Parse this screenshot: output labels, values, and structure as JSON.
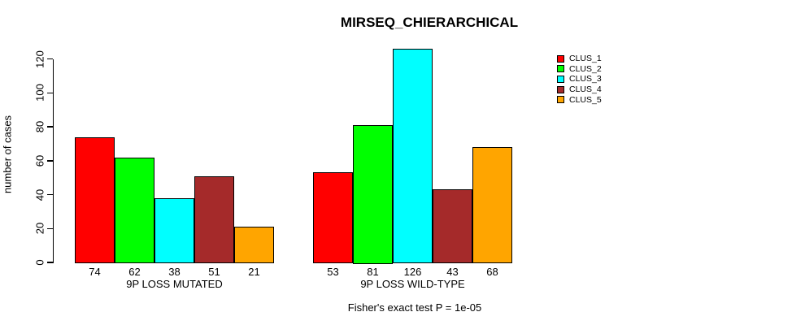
{
  "chart_data": {
    "type": "bar",
    "title": "MIRSEQ_CHIERARCHICAL",
    "ylabel": "number of cases",
    "xlabel": "",
    "ylim": [
      0,
      120
    ],
    "yticks": [
      0,
      20,
      40,
      60,
      80,
      100,
      120
    ],
    "grid": false,
    "legend_position": "right-outside",
    "legend": [
      {
        "label": "CLUS_1",
        "color": "#FF0000"
      },
      {
        "label": "CLUS_2",
        "color": "#00FF00"
      },
      {
        "label": "CLUS_3",
        "color": "#00FFFF"
      },
      {
        "label": "CLUS_4",
        "color": "#A52A2A"
      },
      {
        "label": "CLUS_5",
        "color": "#FFA500"
      }
    ],
    "groups": [
      {
        "label": "9P LOSS MUTATED",
        "values": [
          74,
          62,
          38,
          51,
          21
        ]
      },
      {
        "label": "9P LOSS WILD-TYPE",
        "values": [
          53,
          81,
          126,
          43,
          68
        ]
      }
    ],
    "annotation": "Fisher's exact test P = 1e-05"
  }
}
